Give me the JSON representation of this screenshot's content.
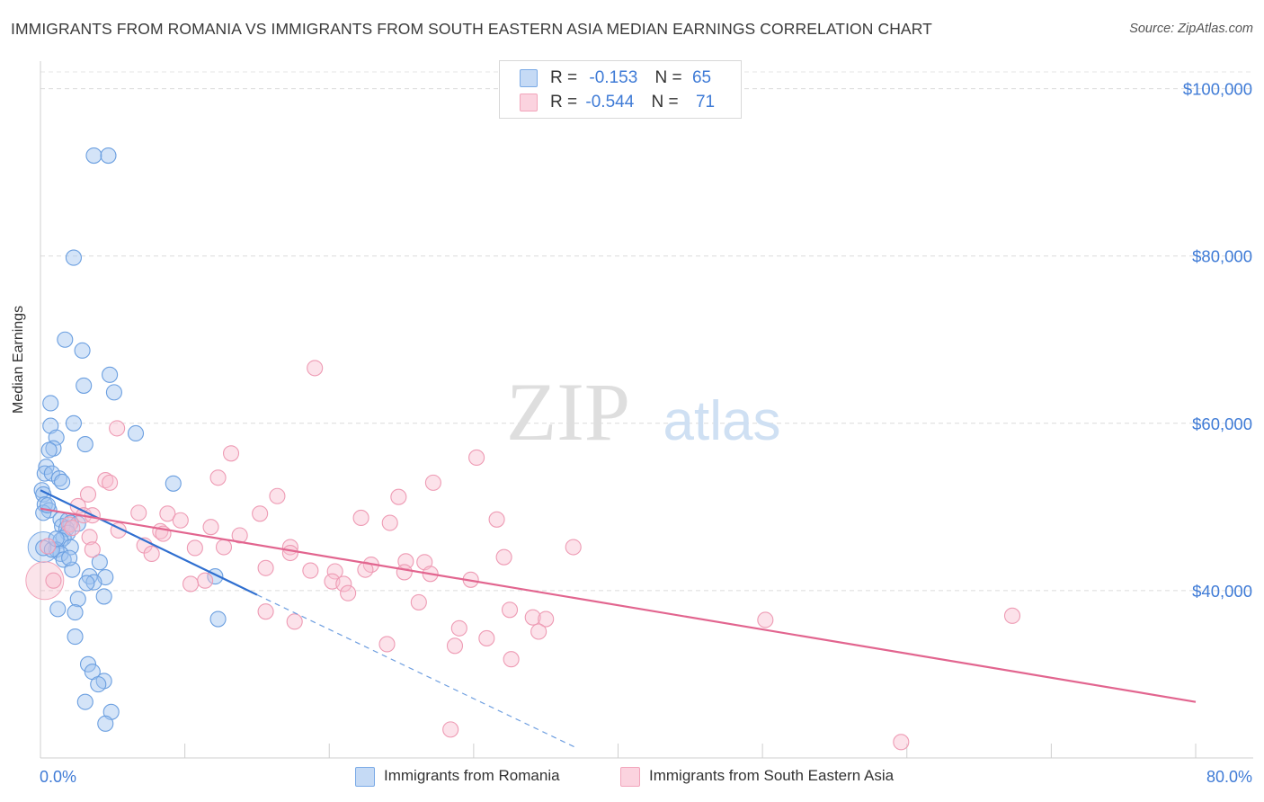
{
  "title": "IMMIGRANTS FROM ROMANIA VS IMMIGRANTS FROM SOUTH EASTERN ASIA MEDIAN EARNINGS CORRELATION CHART",
  "source": "Source: ZipAtlas.com",
  "watermark": {
    "zip": "ZIP",
    "atlas": "atlas"
  },
  "legend_top": {
    "rows": [
      {
        "r_label": "R =",
        "r_value": "-0.153",
        "n_label": "N =",
        "n_value": "65",
        "color": "#a9c7ee"
      },
      {
        "r_label": "R =",
        "r_value": "-0.544",
        "n_label": "N =",
        "n_value": "71",
        "color": "#f5b8ca"
      }
    ]
  },
  "chart_data": {
    "type": "scatter",
    "title": "IMMIGRANTS FROM ROMANIA VS IMMIGRANTS FROM SOUTH EASTERN ASIA MEDIAN EARNINGS CORRELATION CHART",
    "xlabel": "",
    "ylabel": "Median Earnings",
    "xlim": [
      0,
      80
    ],
    "ylim": [
      20000,
      102000
    ],
    "x_tick_labels": [
      "0.0%",
      "80.0%"
    ],
    "y_ticks": [
      40000,
      60000,
      80000,
      100000
    ],
    "y_tick_labels": [
      "$40,000",
      "$60,000",
      "$80,000",
      "$100,000"
    ],
    "grid": true,
    "series": [
      {
        "name": "Immigrants from Romania",
        "color": "#7aaae6",
        "trend": {
          "x0": 0,
          "y0": 52000,
          "x1": 15,
          "y1": 39500,
          "dash_to_x": 37,
          "dash_to_y": 21300
        },
        "points": [
          [
            3.7,
            92000
          ],
          [
            4.7,
            92000
          ],
          [
            2.3,
            79800
          ],
          [
            1.7,
            70000
          ],
          [
            2.9,
            68700
          ],
          [
            3.0,
            64500
          ],
          [
            4.8,
            65800
          ],
          [
            5.1,
            63700
          ],
          [
            0.7,
            62400
          ],
          [
            0.7,
            59700
          ],
          [
            2.3,
            60000
          ],
          [
            6.6,
            58800
          ],
          [
            1.1,
            58300
          ],
          [
            3.1,
            57500
          ],
          [
            0.9,
            57000
          ],
          [
            0.6,
            56800
          ],
          [
            0.4,
            54800
          ],
          [
            0.3,
            54000
          ],
          [
            0.8,
            54000
          ],
          [
            1.3,
            53400
          ],
          [
            1.5,
            53000
          ],
          [
            9.2,
            52800
          ],
          [
            0.1,
            52000
          ],
          [
            0.2,
            51500
          ],
          [
            0.3,
            50300
          ],
          [
            0.6,
            49600
          ],
          [
            0.2,
            49300
          ],
          [
            1.4,
            48500
          ],
          [
            1.9,
            48400
          ],
          [
            2.1,
            48100
          ],
          [
            2.6,
            48000
          ],
          [
            1.5,
            47700
          ],
          [
            1.8,
            47400
          ],
          [
            1.9,
            46900
          ],
          [
            1.6,
            46300
          ],
          [
            1.4,
            46000
          ],
          [
            2.1,
            45200
          ],
          [
            1.1,
            44900
          ],
          [
            1.4,
            44400
          ],
          [
            1.6,
            43700
          ],
          [
            4.1,
            43400
          ],
          [
            2.2,
            42500
          ],
          [
            3.4,
            41700
          ],
          [
            4.5,
            41600
          ],
          [
            12.1,
            41700
          ],
          [
            3.7,
            41000
          ],
          [
            2.6,
            39000
          ],
          [
            4.4,
            39300
          ],
          [
            1.2,
            37800
          ],
          [
            2.4,
            37400
          ],
          [
            12.3,
            36600
          ],
          [
            2.4,
            34500
          ],
          [
            3.3,
            31200
          ],
          [
            3.6,
            30300
          ],
          [
            4.4,
            29200
          ],
          [
            4.0,
            28800
          ],
          [
            3.1,
            26700
          ],
          [
            4.9,
            25500
          ],
          [
            4.5,
            24100
          ],
          [
            0.2,
            45100
          ],
          [
            0.5,
            50200
          ],
          [
            0.8,
            44900
          ],
          [
            2.0,
            43900
          ],
          [
            3.2,
            40900
          ],
          [
            1.1,
            46200
          ]
        ]
      },
      {
        "name": "Immigrants from South Eastern Asia",
        "color": "#f2a5bb",
        "trend": {
          "x0": 0,
          "y0": 49800,
          "x1": 80,
          "y1": 26700
        },
        "points": [
          [
            19.0,
            66600
          ],
          [
            5.3,
            59400
          ],
          [
            13.2,
            56400
          ],
          [
            30.2,
            55900
          ],
          [
            12.3,
            53500
          ],
          [
            4.5,
            53200
          ],
          [
            4.8,
            52900
          ],
          [
            27.2,
            52900
          ],
          [
            3.3,
            51500
          ],
          [
            16.4,
            51300
          ],
          [
            24.8,
            51200
          ],
          [
            2.6,
            50100
          ],
          [
            6.8,
            49300
          ],
          [
            8.8,
            49200
          ],
          [
            3.0,
            49000
          ],
          [
            3.6,
            49000
          ],
          [
            15.2,
            49200
          ],
          [
            22.2,
            48700
          ],
          [
            31.6,
            48500
          ],
          [
            9.7,
            48400
          ],
          [
            24.2,
            48100
          ],
          [
            11.8,
            47600
          ],
          [
            2.0,
            47900
          ],
          [
            8.3,
            47100
          ],
          [
            5.4,
            47200
          ],
          [
            13.8,
            46600
          ],
          [
            3.4,
            46400
          ],
          [
            7.2,
            45400
          ],
          [
            17.3,
            45200
          ],
          [
            36.9,
            45200
          ],
          [
            10.7,
            45100
          ],
          [
            12.7,
            45200
          ],
          [
            17.3,
            44500
          ],
          [
            7.7,
            44400
          ],
          [
            32.1,
            44000
          ],
          [
            25.3,
            43500
          ],
          [
            26.6,
            43400
          ],
          [
            22.9,
            43100
          ],
          [
            15.6,
            42700
          ],
          [
            18.7,
            42400
          ],
          [
            20.4,
            42300
          ],
          [
            22.5,
            42500
          ],
          [
            25.2,
            42200
          ],
          [
            27.0,
            42000
          ],
          [
            11.4,
            41200
          ],
          [
            20.2,
            41100
          ],
          [
            29.8,
            41300
          ],
          [
            10.4,
            40800
          ],
          [
            21.0,
            40800
          ],
          [
            21.3,
            39700
          ],
          [
            26.2,
            38600
          ],
          [
            32.5,
            37700
          ],
          [
            15.6,
            37500
          ],
          [
            34.1,
            36800
          ],
          [
            35.0,
            36600
          ],
          [
            17.6,
            36300
          ],
          [
            50.2,
            36500
          ],
          [
            67.3,
            37000
          ],
          [
            29.0,
            35500
          ],
          [
            34.5,
            35100
          ],
          [
            30.9,
            34300
          ],
          [
            24.0,
            33600
          ],
          [
            28.7,
            33400
          ],
          [
            32.6,
            31800
          ],
          [
            0.9,
            41200
          ],
          [
            0.5,
            45300
          ],
          [
            2.2,
            47500
          ],
          [
            3.6,
            44900
          ],
          [
            28.4,
            23400
          ],
          [
            59.6,
            21900
          ],
          [
            8.5,
            46800
          ]
        ]
      }
    ]
  },
  "bottom_legend": [
    {
      "label": "Immigrants from Romania",
      "color": "#a9c7ee"
    },
    {
      "label": "Immigrants from South Eastern Asia",
      "color": "#f5b8ca"
    }
  ]
}
